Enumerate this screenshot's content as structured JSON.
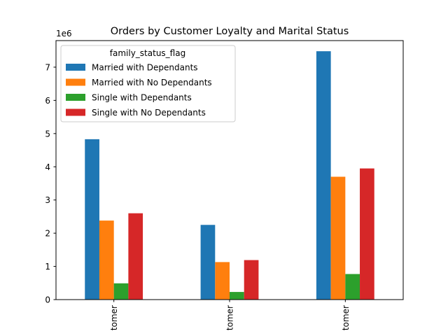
{
  "chart_data": {
    "type": "bar",
    "title": "Orders by Customer Loyalty and Marital Status",
    "xlabel": "",
    "ylabel": "",
    "y_scale_label": "1e6",
    "categories": [
      "tomer",
      "tomer",
      "tomer"
    ],
    "ylim": [
      0,
      7800000
    ],
    "yticks": [
      0,
      1000000,
      2000000,
      3000000,
      4000000,
      5000000,
      6000000,
      7000000
    ],
    "ytick_labels": [
      "0",
      "1",
      "2",
      "3",
      "4",
      "5",
      "6",
      "7"
    ],
    "legend": {
      "title": "family_status_flag",
      "position": "top-left"
    },
    "grid": false,
    "series": [
      {
        "name": "Married with Dependants",
        "color": "#1f77b4",
        "values": [
          4830000,
          2250000,
          7480000
        ]
      },
      {
        "name": "Married with No Dependants",
        "color": "#ff7f0e",
        "values": [
          2380000,
          1130000,
          3700000
        ]
      },
      {
        "name": "Single with Dependants",
        "color": "#2ca02c",
        "values": [
          490000,
          230000,
          770000
        ]
      },
      {
        "name": "Single with No Dependants",
        "color": "#d62728",
        "values": [
          2600000,
          1190000,
          3950000
        ]
      }
    ]
  }
}
